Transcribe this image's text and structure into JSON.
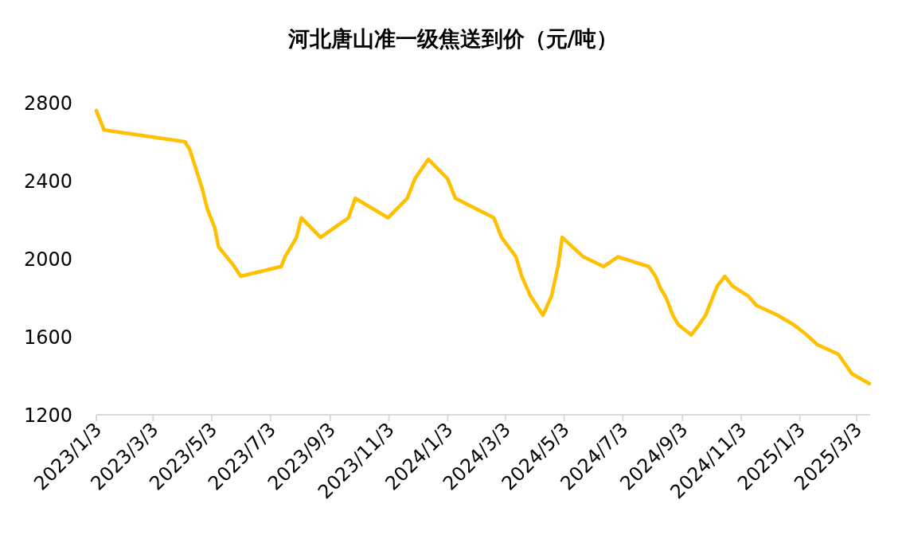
{
  "chart_data": {
    "type": "line",
    "title": "河北唐山准一级焦送到价（元/吨）",
    "x": [
      "2023-01-03",
      "2023-01-11",
      "2023-04-05",
      "2023-04-10",
      "2023-04-23",
      "2023-04-28",
      "2023-05-06",
      "2023-05-10",
      "2023-05-25",
      "2023-06-02",
      "2023-07-14",
      "2023-07-18",
      "2023-07-30",
      "2023-08-04",
      "2023-08-24",
      "2023-09-22",
      "2023-09-29",
      "2023-11-02",
      "2023-11-22",
      "2023-11-30",
      "2023-12-14",
      "2024-01-03",
      "2024-01-11",
      "2024-02-20",
      "2024-02-28",
      "2024-03-14",
      "2024-03-20",
      "2024-03-29",
      "2024-04-11",
      "2024-04-20",
      "2024-04-27",
      "2024-05-01",
      "2024-05-23",
      "2024-06-13",
      "2024-06-28",
      "2024-07-30",
      "2024-08-06",
      "2024-08-11",
      "2024-08-17",
      "2024-08-24",
      "2024-08-30",
      "2024-09-12",
      "2024-09-20",
      "2024-09-27",
      "2024-10-05",
      "2024-10-09",
      "2024-10-17",
      "2024-10-25",
      "2024-11-10",
      "2024-11-19",
      "2024-12-11",
      "2024-12-28",
      "2025-01-10",
      "2025-01-21",
      "2025-02-12",
      "2025-02-26",
      "2025-03-16"
    ],
    "series": [
      {
        "color": "#ffc000",
        "values": [
          2760,
          2660,
          2600,
          2560,
          2360,
          2260,
          2160,
          2060,
          1970,
          1910,
          1960,
          2010,
          2110,
          2210,
          2110,
          2210,
          2310,
          2210,
          2310,
          2410,
          2510,
          2410,
          2310,
          2210,
          2110,
          2010,
          1910,
          1810,
          1710,
          1810,
          1970,
          2110,
          2010,
          1960,
          2010,
          1960,
          1910,
          1850,
          1800,
          1710,
          1660,
          1610,
          1660,
          1710,
          1810,
          1860,
          1910,
          1860,
          1810,
          1760,
          1710,
          1660,
          1610,
          1560,
          1510,
          1410,
          1360
        ]
      }
    ],
    "xlim": [
      "2023-01-03",
      "2025-03-17"
    ],
    "xticks": [
      {
        "value": "2023-01-03",
        "label": "2023/1/3"
      },
      {
        "value": "2023-03-03",
        "label": "2023/3/3"
      },
      {
        "value": "2023-05-03",
        "label": "2023/5/3"
      },
      {
        "value": "2023-07-03",
        "label": "2023/7/3"
      },
      {
        "value": "2023-09-03",
        "label": "2023/9/3"
      },
      {
        "value": "2023-11-03",
        "label": "2023/11/3"
      },
      {
        "value": "2024-01-03",
        "label": "2024/1/3"
      },
      {
        "value": "2024-03-03",
        "label": "2024/3/3"
      },
      {
        "value": "2024-05-03",
        "label": "2024/5/3"
      },
      {
        "value": "2024-07-03",
        "label": "2024/7/3"
      },
      {
        "value": "2024-09-03",
        "label": "2024/9/3"
      },
      {
        "value": "2024-11-03",
        "label": "2024/11/3"
      },
      {
        "value": "2025-01-03",
        "label": "2025/1/3"
      },
      {
        "value": "2025-03-03",
        "label": "2025/3/3"
      }
    ],
    "ylim": [
      1200,
      2800
    ],
    "yticks": [
      1200,
      1600,
      2000,
      2400,
      2800
    ],
    "grid": false,
    "marker": "none",
    "line_style": "solid"
  }
}
